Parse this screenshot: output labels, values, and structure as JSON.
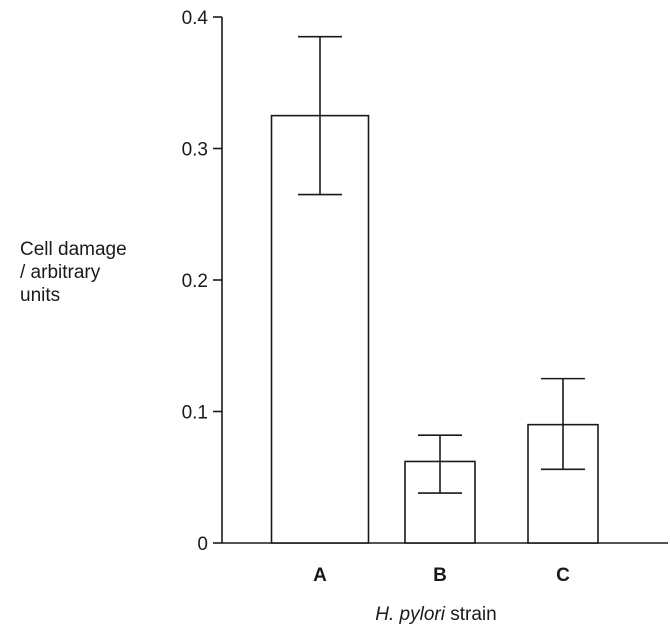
{
  "chart_data": {
    "type": "bar",
    "categories": [
      "A",
      "B",
      "C"
    ],
    "values": [
      0.325,
      0.062,
      0.09
    ],
    "error_bars": {
      "upper": [
        0.385,
        0.082,
        0.125
      ],
      "lower": [
        0.265,
        0.038,
        0.056
      ]
    },
    "ylim": [
      0,
      0.4
    ],
    "yticks": [
      "0",
      "0.1",
      "0.2",
      "0.3",
      "0.4"
    ],
    "ylabel_lines": [
      "Cell damage",
      "/ arbitrary",
      "units"
    ],
    "xlabel_italic": "H. pylori",
    "xlabel_rest": " strain",
    "grid": false,
    "colors": {
      "bar_fill": "#ffffff",
      "stroke": "#1a1a1a"
    }
  }
}
